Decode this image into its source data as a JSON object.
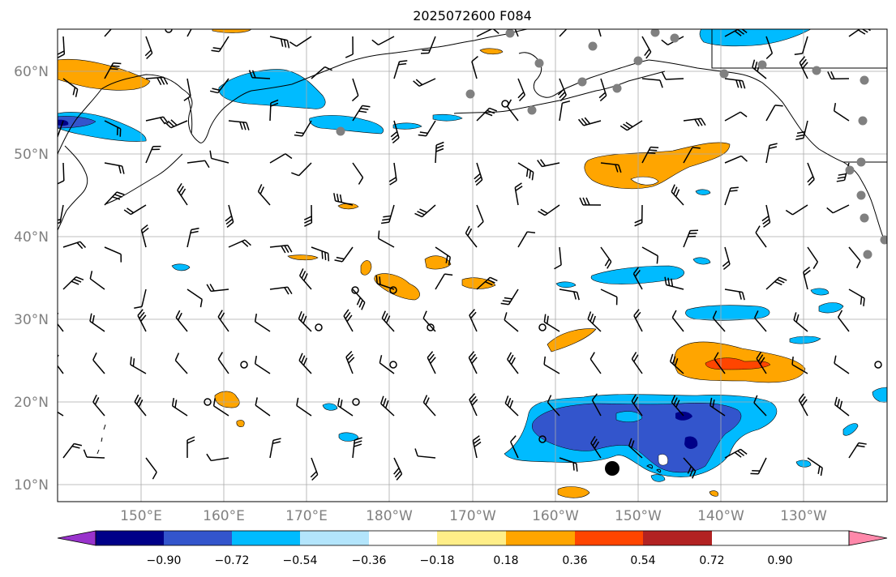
{
  "title": "2025072600 F084",
  "map": {
    "latitude_labels": [
      "60°N",
      "50°N",
      "40°N",
      "30°N",
      "20°N",
      "10°N"
    ],
    "longitude_labels": [
      "150°E",
      "160°E",
      "170°E",
      "180°W",
      "170°W",
      "160°W",
      "150°W",
      "140°W",
      "130°W"
    ],
    "grid": true,
    "tick_label_color": "#808080",
    "coastline_color": "#000000",
    "station_marker_color": "#808080"
  },
  "colorbar": {
    "tick_labels": [
      "−0.90",
      "−0.72",
      "−0.54",
      "−0.36",
      "−0.18",
      "0.18",
      "0.36",
      "0.54",
      "0.72",
      "0.90"
    ],
    "colors": [
      "#9933cc",
      "#000088",
      "#3355cc",
      "#00bbff",
      "#b3e5fc",
      "#ffffff",
      "#ffee88",
      "#ffa500",
      "#ff4500",
      "#b22222",
      "#ff88aa"
    ],
    "extend": "both"
  },
  "shading": {
    "orange_fill": "#ffa500",
    "red_fill": "#ff4500",
    "light_blue_fill": "#00bbff",
    "dark_blue_fill": "#3355cc",
    "navy_fill": "#000088"
  }
}
